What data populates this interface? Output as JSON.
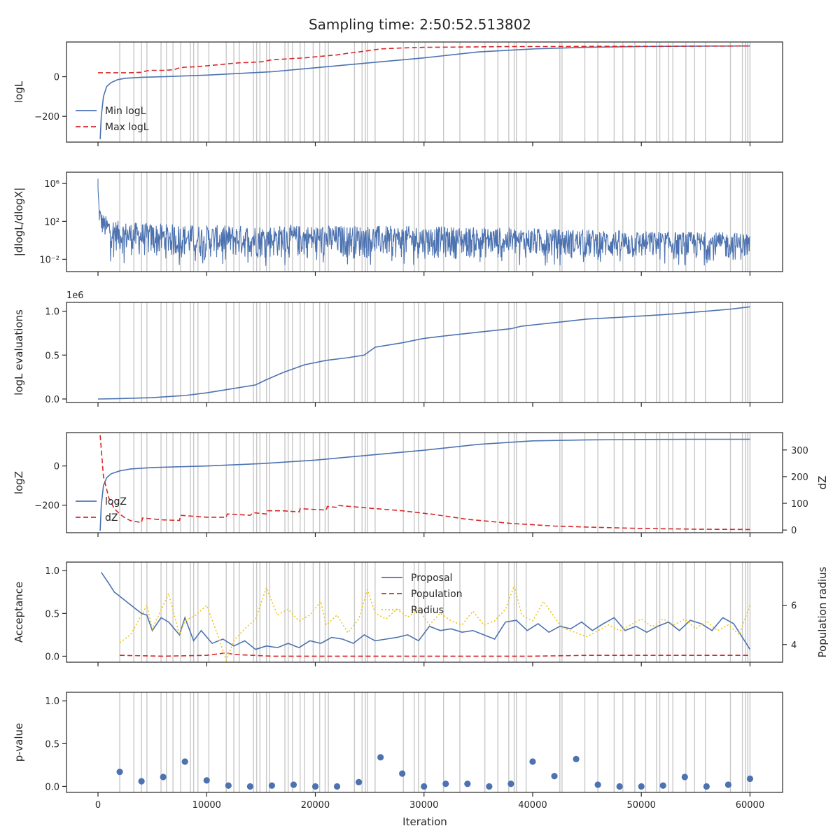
{
  "title": "Sampling time: 2:50:52.513802",
  "colors": {
    "blue": "#4c72b0",
    "red": "#d62728",
    "yellow": "#f1c40f",
    "grid_vline": "#c8c8c8",
    "axis": "#262626"
  },
  "x_axis": {
    "label": "Iteration",
    "ticks": [
      0,
      10000,
      20000,
      30000,
      40000,
      50000,
      60000
    ],
    "tick_labels": [
      "0",
      "10000",
      "20000",
      "30000",
      "40000",
      "50000",
      "60000"
    ],
    "range": [
      -2900,
      63000
    ]
  },
  "insertion_lines": [
    2000,
    3300,
    4000,
    4500,
    5800,
    6300,
    6900,
    7600,
    8500,
    8800,
    9200,
    10200,
    11800,
    12500,
    13000,
    14300,
    14600,
    14900,
    15500,
    15800,
    17200,
    17500,
    17900,
    18600,
    19000,
    19800,
    20400,
    20900,
    21200,
    23600,
    24300,
    24600,
    24800,
    25500,
    28100,
    29100,
    29500,
    30100,
    31800,
    33300,
    35600,
    36800,
    37800,
    38300,
    38500,
    39400,
    42500,
    42700,
    44800,
    46000,
    47500,
    48300,
    49400,
    50400,
    51400,
    51700,
    52500,
    52900,
    54100,
    54900,
    55900,
    58200,
    59300,
    59600,
    59800,
    60000
  ],
  "chart_data": [
    {
      "type": "line",
      "panel": "logL",
      "ylabel": "logL",
      "ylim": [
        -330,
        175
      ],
      "yticks": [
        -200,
        0
      ],
      "ytick_labels": [
        "−200",
        "0"
      ],
      "legend_position": "lower-left",
      "series": [
        {
          "name": "Min logL",
          "style": "solid",
          "color": "#4c72b0",
          "x": [
            200,
            300,
            500,
            800,
            1200,
            1800,
            2500,
            4000,
            6000,
            10000,
            16000,
            20000,
            25000,
            30000,
            35000,
            40000,
            45000,
            50000,
            55000,
            60000
          ],
          "y": [
            -315,
            -200,
            -100,
            -50,
            -30,
            -15,
            -8,
            -3,
            0,
            8,
            25,
            45,
            70,
            95,
            125,
            140,
            148,
            152,
            154,
            155
          ]
        },
        {
          "name": "Max logL",
          "style": "dashed",
          "color": "#d62728",
          "x": [
            0,
            1000,
            2000,
            3000,
            4000,
            4500,
            5000,
            6000,
            7000,
            7500,
            8000,
            9000,
            10000,
            11000,
            12000,
            13000,
            14000,
            15000,
            16000,
            17000,
            18000,
            19000,
            20000,
            21000,
            22000,
            23000,
            24000,
            26000,
            28000,
            30000,
            34000,
            38000,
            42000,
            46000,
            50000,
            55000,
            60000
          ],
          "y": [
            20,
            20,
            20,
            20,
            22,
            30,
            32,
            32,
            35,
            45,
            48,
            50,
            55,
            60,
            65,
            70,
            72,
            75,
            85,
            88,
            92,
            95,
            100,
            105,
            110,
            118,
            125,
            140,
            145,
            148,
            150,
            152,
            152,
            153,
            153,
            154,
            155
          ]
        }
      ]
    },
    {
      "type": "line",
      "panel": "dlogL_dlogX",
      "ylabel": "|dlogL/dlogX|",
      "yscale": "log",
      "ylim_log10": [
        -3.3,
        7.2
      ],
      "yticks_log10": [
        -2,
        2,
        6
      ],
      "ytick_labels": [
        "10⁻²",
        "10²",
        "10⁶"
      ],
      "series": [
        {
          "name": "",
          "style": "noisy",
          "color": "#4c72b0",
          "x": [
            0,
            100,
            300,
            800,
            2000,
            5000,
            10000,
            20000,
            30000,
            40000,
            50000,
            60000
          ],
          "log10_upper": [
            6.5,
            4.0,
            3.0,
            2.5,
            2.0,
            1.8,
            1.6,
            1.6,
            1.5,
            1.3,
            1.0,
            0.8
          ],
          "log10_lower": [
            3.0,
            1.5,
            0.5,
            -0.5,
            -1.5,
            -2.0,
            -2.0,
            -2.0,
            -2.0,
            -2.0,
            -2.2,
            -2.2
          ],
          "log10_dips_min": -2.7
        }
      ]
    },
    {
      "type": "line",
      "panel": "evaluations",
      "ylabel": "logL evaluations",
      "offset_label": "1e6",
      "ylim": [
        -0.04,
        1.1
      ],
      "yticks": [
        0.0,
        0.5,
        1.0
      ],
      "ytick_labels": [
        "0.0",
        "0.5",
        "1.0"
      ],
      "series": [
        {
          "name": "",
          "style": "solid",
          "color": "#4c72b0",
          "x": [
            0,
            2000,
            5000,
            8000,
            10000,
            12000,
            14500,
            15500,
            17000,
            19000,
            21000,
            23000,
            24500,
            25500,
            28000,
            30000,
            32000,
            35000,
            38000,
            39000,
            42000,
            45000,
            48000,
            52000,
            55000,
            58000,
            60000
          ],
          "y": [
            0.0,
            0.005,
            0.015,
            0.04,
            0.07,
            0.11,
            0.16,
            0.22,
            0.3,
            0.39,
            0.44,
            0.47,
            0.5,
            0.59,
            0.64,
            0.69,
            0.72,
            0.76,
            0.8,
            0.83,
            0.87,
            0.91,
            0.93,
            0.96,
            0.99,
            1.02,
            1.05
          ]
        }
      ]
    },
    {
      "type": "line",
      "panel": "logZ",
      "ylabel": "logZ",
      "ylim": [
        -340,
        170
      ],
      "yticks": [
        -200,
        0
      ],
      "ytick_labels": [
        "−200",
        "0"
      ],
      "y2label": "dZ",
      "y2lim": [
        -10,
        365
      ],
      "y2ticks": [
        0,
        100,
        200,
        300
      ],
      "y2tick_labels": [
        "0",
        "100",
        "200",
        "300"
      ],
      "legend_position": "lower-left",
      "series": [
        {
          "name": "logZ",
          "style": "solid",
          "axis": "left",
          "color": "#4c72b0",
          "x": [
            200,
            300,
            500,
            800,
            1200,
            2000,
            3000,
            5000,
            10000,
            15000,
            20000,
            25000,
            30000,
            35000,
            40000,
            45000,
            50000,
            55000,
            60000
          ],
          "y": [
            -330,
            -200,
            -100,
            -60,
            -40,
            -25,
            -15,
            -8,
            0,
            12,
            30,
            55,
            80,
            110,
            128,
            133,
            135,
            136,
            136
          ]
        },
        {
          "name": "dZ",
          "style": "dashed",
          "axis": "right",
          "color": "#d62728",
          "x": [
            200,
            500,
            1000,
            1500,
            2000,
            2500,
            3000,
            4000,
            4100,
            6000,
            7500,
            7600,
            10000,
            11800,
            11900,
            13000,
            14000,
            14300,
            15500,
            15600,
            17000,
            18500,
            18600,
            21000,
            21100,
            22000,
            22100,
            25000,
            28000,
            31000,
            34000,
            38000,
            42000,
            46000,
            50000,
            55000,
            60000
          ],
          "y": [
            355,
            200,
            120,
            80,
            60,
            45,
            35,
            28,
            45,
            38,
            36,
            55,
            48,
            48,
            60,
            58,
            55,
            65,
            60,
            72,
            72,
            68,
            80,
            75,
            88,
            85,
            92,
            82,
            72,
            58,
            40,
            25,
            15,
            10,
            6,
            3,
            2
          ]
        }
      ]
    },
    {
      "type": "line",
      "panel": "acceptance",
      "ylabel": "Acceptance",
      "ylim": [
        -0.07,
        1.1
      ],
      "yticks": [
        0.0,
        0.5,
        1.0
      ],
      "ytick_labels": [
        "0.0",
        "0.5",
        "1.0"
      ],
      "y2label": "Population radius",
      "y2lim": [
        3.1,
        8.2
      ],
      "y2ticks": [
        4,
        6
      ],
      "y2tick_labels": [
        "4",
        "6"
      ],
      "legend_position": "top-center",
      "series": [
        {
          "name": "Proposal",
          "style": "solid",
          "axis": "left",
          "color": "#4c72b0",
          "x": [
            0,
            300,
            1000,
            1500,
            2000,
            2500,
            3500,
            4000,
            4500,
            5000,
            5800,
            6500,
            7500,
            8000,
            8800,
            9500,
            10500,
            11500,
            12500,
            13500,
            14500,
            15500,
            16500,
            17500,
            18500,
            19500,
            20500,
            21500,
            22500,
            23500,
            24500,
            25500,
            26500,
            27500,
            28500,
            29500,
            30500,
            31500,
            32500,
            33500,
            34500,
            35500,
            36500,
            37500,
            38500,
            39500,
            40500,
            41500,
            42500,
            43500,
            44500,
            45500,
            46500,
            47500,
            48500,
            49500,
            50500,
            51500,
            52500,
            53500,
            54500,
            55500,
            56500,
            57500,
            58500,
            59500,
            60000
          ],
          "y": [
            null,
            0.98,
            0.85,
            0.75,
            0.7,
            0.65,
            0.55,
            0.5,
            0.48,
            0.3,
            0.45,
            0.4,
            0.25,
            0.45,
            0.18,
            0.3,
            0.15,
            0.2,
            0.12,
            0.18,
            0.08,
            0.12,
            0.1,
            0.15,
            0.1,
            0.18,
            0.15,
            0.22,
            0.2,
            0.15,
            0.25,
            0.18,
            0.2,
            0.22,
            0.25,
            0.18,
            0.35,
            0.3,
            0.32,
            0.28,
            0.3,
            0.25,
            0.2,
            0.4,
            0.42,
            0.3,
            0.38,
            0.28,
            0.35,
            0.32,
            0.4,
            0.3,
            0.38,
            0.45,
            0.3,
            0.35,
            0.28,
            0.35,
            0.4,
            0.3,
            0.42,
            0.38,
            0.3,
            0.45,
            0.38,
            0.18,
            0.08
          ]
        },
        {
          "name": "Population",
          "style": "dashed",
          "axis": "left",
          "color": "#d62728",
          "x": [
            2000,
            6000,
            10000,
            11800,
            12500,
            16000,
            20000,
            25000,
            30000,
            35000,
            40000,
            45000,
            50000,
            55000,
            60000
          ],
          "y": [
            0.01,
            0.0,
            0.01,
            0.04,
            0.02,
            0.0,
            0.0,
            0.0,
            0.0,
            0.0,
            0.0,
            0.01,
            0.01,
            0.01,
            0.01
          ]
        },
        {
          "name": "Radius",
          "style": "dotted",
          "axis": "right",
          "color": "#f1c40f",
          "x": [
            2000,
            3000,
            4000,
            4500,
            5000,
            6000,
            6500,
            7500,
            8000,
            9000,
            10000,
            11000,
            11800,
            12500,
            13500,
            14500,
            15500,
            16500,
            17500,
            18500,
            19500,
            20500,
            21000,
            22000,
            23000,
            24000,
            24800,
            25500,
            26500,
            27500,
            28500,
            29500,
            30500,
            31500,
            32500,
            33500,
            34500,
            35500,
            36500,
            37500,
            38300,
            39000,
            40000,
            41000,
            42500,
            43000,
            44000,
            45000,
            46000,
            47000,
            48000,
            49000,
            50000,
            51000,
            52000,
            53000,
            54000,
            55000,
            56000,
            57000,
            58000,
            59000,
            60000
          ],
          "y": [
            4.1,
            4.5,
            5.5,
            6.0,
            4.8,
            6.0,
            6.6,
            4.5,
            5.2,
            5.5,
            6.0,
            4.5,
            3.2,
            4.2,
            4.8,
            5.3,
            6.9,
            5.5,
            5.8,
            5.2,
            5.5,
            6.2,
            5.0,
            5.5,
            4.6,
            5.3,
            6.8,
            5.6,
            5.3,
            5.8,
            5.4,
            5.8,
            5.0,
            5.6,
            5.2,
            5.0,
            5.7,
            5.0,
            5.2,
            5.8,
            7.0,
            5.5,
            5.2,
            6.2,
            5.0,
            4.8,
            4.6,
            4.4,
            4.7,
            5.0,
            4.7,
            5.0,
            5.3,
            4.9,
            5.3,
            5.0,
            5.3,
            4.8,
            5.2,
            4.7,
            5.0,
            4.5,
            6.0
          ]
        }
      ]
    },
    {
      "type": "scatter",
      "panel": "p_value",
      "ylabel": "p-value",
      "xlabel": "Iteration",
      "ylim": [
        -0.07,
        1.1
      ],
      "yticks": [
        0.0,
        0.5,
        1.0
      ],
      "ytick_labels": [
        "0.0",
        "0.5",
        "1.0"
      ],
      "series": [
        {
          "name": "",
          "color": "#4c72b0",
          "x": [
            2000,
            4000,
            6000,
            8000,
            10000,
            12000,
            14000,
            16000,
            18000,
            20000,
            22000,
            24000,
            26000,
            28000,
            30000,
            32000,
            34000,
            36000,
            38000,
            40000,
            42000,
            44000,
            46000,
            48000,
            50000,
            52000,
            54000,
            56000,
            58000,
            60000
          ],
          "y": [
            0.17,
            0.06,
            0.11,
            0.29,
            0.07,
            0.01,
            0.0,
            0.01,
            0.02,
            0.0,
            0.0,
            0.05,
            0.34,
            0.15,
            0.0,
            0.03,
            0.03,
            0.0,
            0.03,
            0.29,
            0.12,
            0.32,
            0.02,
            0.0,
            0.0,
            0.01,
            0.11,
            0.0,
            0.02,
            0.09
          ]
        }
      ]
    }
  ]
}
